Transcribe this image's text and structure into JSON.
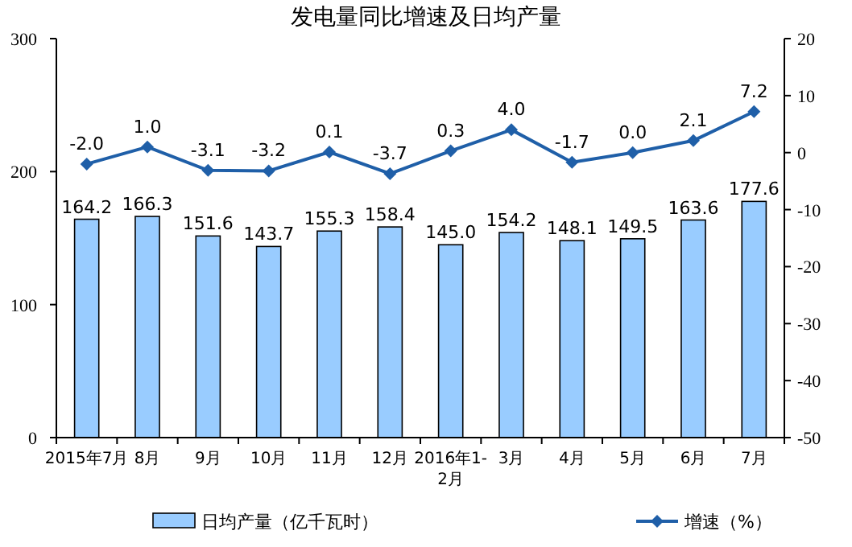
{
  "chart_data": {
    "type": "bar",
    "title": "发电量同比增速及日均产量",
    "categories": [
      "2015年7月",
      "8月",
      "9月",
      "10月",
      "11月",
      "12月",
      "2016年1-2月",
      "3月",
      "4月",
      "5月",
      "6月",
      "7月"
    ],
    "series": [
      {
        "name": "日均产量（亿千瓦时）",
        "color": "#99ccff",
        "values": [
          164.2,
          166.3,
          151.6,
          143.7,
          155.3,
          158.4,
          145.0,
          154.2,
          148.1,
          149.5,
          163.6,
          177.6
        ],
        "value_labels": [
          "164.2",
          "166.3",
          "151.6",
          "143.7",
          "155.3",
          "158.4",
          "145.0",
          "154.2",
          "148.1",
          "149.5",
          "163.6",
          "177.6"
        ]
      },
      {
        "name": "增速（%）",
        "type": "line",
        "axis": "y2",
        "color": "#1f5fa8",
        "marker": "diamond",
        "values": [
          -2.0,
          1.0,
          -3.1,
          -3.2,
          0.1,
          -3.7,
          0.3,
          4.0,
          -1.7,
          0.0,
          2.1,
          7.2
        ],
        "value_labels": [
          "-2.0",
          "1.0",
          "-3.1",
          "-3.2",
          "0.1",
          "-3.7",
          "0.3",
          "4.0",
          "-1.7",
          "0.0",
          "2.1",
          "7.2"
        ]
      }
    ],
    "ylim": [
      0,
      300
    ],
    "yticks": [
      0,
      100,
      200,
      300
    ],
    "y2lim": [
      -50,
      20
    ],
    "y2ticks": [
      -50,
      -40,
      -30,
      -20,
      -10,
      0,
      10,
      20
    ],
    "legend": "bottom",
    "grid": false
  }
}
